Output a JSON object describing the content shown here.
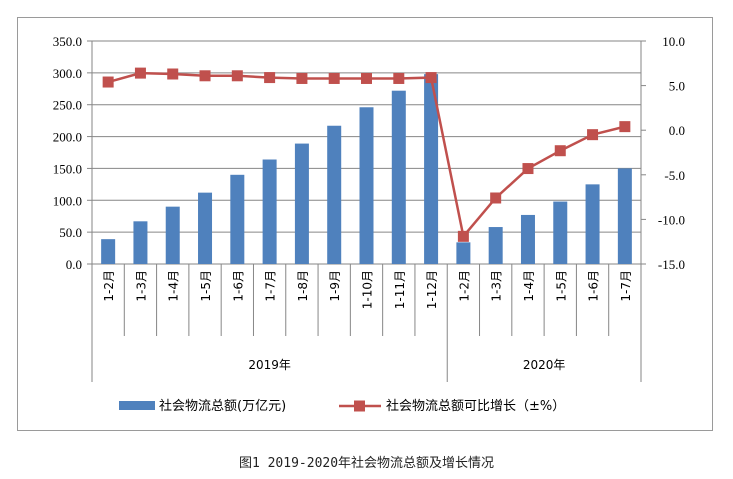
{
  "caption": "图1 2019-2020年社会物流总额及增长情况",
  "chart_data": {
    "type": "bar+line",
    "categories": [
      "1-2月",
      "1-3月",
      "1-4月",
      "1-5月",
      "1-6月",
      "1-7月",
      "1-8月",
      "1-9月",
      "1-10月",
      "1-11月",
      "1-12月",
      "1-2月",
      "1-3月",
      "1-4月",
      "1-5月",
      "1-6月",
      "1-7月"
    ],
    "groups": [
      {
        "label": "2019年",
        "start": 0,
        "end": 10
      },
      {
        "label": "2020年",
        "start": 11,
        "end": 16
      }
    ],
    "series": [
      {
        "name": "社会物流总额(万亿元)",
        "type": "bar",
        "axis": "left",
        "color": "#4f81bd",
        "values": [
          39,
          67,
          90,
          112,
          140,
          164,
          189,
          217,
          246,
          272,
          298,
          34,
          58,
          77,
          98,
          125,
          150
        ]
      },
      {
        "name": "社会物流总额可比增长（±%）",
        "type": "line",
        "axis": "right",
        "color": "#c0504d",
        "values": [
          5.4,
          6.4,
          6.3,
          6.1,
          6.1,
          5.9,
          5.8,
          5.8,
          5.8,
          5.8,
          5.9,
          -11.9,
          -7.6,
          -4.3,
          -2.3,
          -0.5,
          0.4
        ]
      }
    ],
    "y_left": {
      "ylim": [
        0,
        350
      ],
      "ticks": [
        "0.0",
        "50.0",
        "100.0",
        "150.0",
        "200.0",
        "250.0",
        "300.0",
        "350.0"
      ],
      "tick_values": [
        0,
        50,
        100,
        150,
        200,
        250,
        300,
        350
      ]
    },
    "y_right": {
      "ylim": [
        -15,
        10
      ],
      "ticks": [
        "-15.0",
        "-10.0",
        "-5.0",
        "0.0",
        "5.0",
        "10.0"
      ],
      "tick_values": [
        -15,
        -10,
        -5,
        0,
        5,
        10
      ]
    },
    "grid": "horizontal",
    "legend": "bottom"
  }
}
